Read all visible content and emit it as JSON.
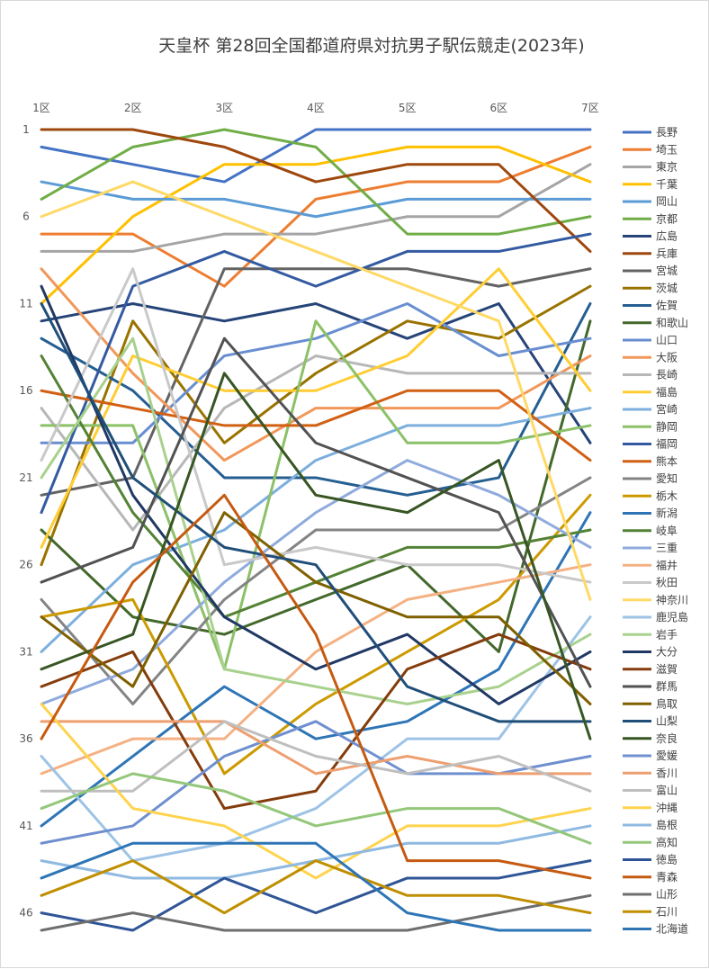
{
  "chart_data": {
    "type": "line",
    "title": "天皇杯 第28回全国都道府県対抗男子駅伝競走(2023年)",
    "categories": [
      "1区",
      "2区",
      "3区",
      "4区",
      "5区",
      "6区",
      "7区"
    ],
    "y_ticks": [
      "1",
      "6",
      "11",
      "16",
      "21",
      "26",
      "31",
      "36",
      "41",
      "46"
    ],
    "ylim": [
      1,
      47
    ],
    "y_reversed": true,
    "legend_position": "right",
    "series": [
      {
        "name": "長野",
        "color": "#4472C4",
        "values": [
          2,
          3,
          4,
          1,
          1,
          1,
          1
        ]
      },
      {
        "name": "埼玉",
        "color": "#ED7D31",
        "values": [
          7,
          7,
          10,
          5,
          4,
          4,
          2
        ]
      },
      {
        "name": "東京",
        "color": "#A5A5A5",
        "values": [
          8,
          8,
          7,
          7,
          6,
          6,
          3
        ]
      },
      {
        "name": "千葉",
        "color": "#FFC000",
        "values": [
          11,
          6,
          3,
          3,
          2,
          2,
          4
        ]
      },
      {
        "name": "岡山",
        "color": "#5B9BD5",
        "values": [
          4,
          5,
          5,
          6,
          5,
          5,
          5
        ]
      },
      {
        "name": "京都",
        "color": "#70AD47",
        "values": [
          5,
          2,
          1,
          2,
          7,
          7,
          6
        ]
      },
      {
        "name": "広島",
        "color": "#264478",
        "values": [
          12,
          11,
          12,
          11,
          13,
          11,
          19
        ]
      },
      {
        "name": "兵庫",
        "color": "#9E480E",
        "values": [
          1,
          1,
          2,
          4,
          3,
          3,
          8
        ]
      },
      {
        "name": "宮城",
        "color": "#636363",
        "values": [
          22,
          21,
          9,
          9,
          9,
          10,
          9
        ]
      },
      {
        "name": "茨城",
        "color": "#997300",
        "values": [
          26,
          12,
          19,
          15,
          12,
          13,
          10
        ]
      },
      {
        "name": "佐賀",
        "color": "#255E91",
        "values": [
          13,
          16,
          21,
          21,
          22,
          21,
          11
        ]
      },
      {
        "name": "和歌山",
        "color": "#43682B",
        "values": [
          24,
          29,
          30,
          28,
          26,
          31,
          12
        ]
      },
      {
        "name": "山口",
        "color": "#698ED0",
        "values": [
          19,
          19,
          14,
          13,
          11,
          14,
          13
        ]
      },
      {
        "name": "大阪",
        "color": "#F1975A",
        "values": [
          9,
          15,
          20,
          17,
          17,
          17,
          14
        ]
      },
      {
        "name": "長崎",
        "color": "#B7B7B7",
        "values": [
          17,
          24,
          17,
          14,
          15,
          15,
          15
        ]
      },
      {
        "name": "福島",
        "color": "#FFCD33",
        "values": [
          25,
          14,
          16,
          16,
          14,
          9,
          16
        ]
      },
      {
        "name": "宮崎",
        "color": "#7CAFDD",
        "values": [
          31,
          26,
          24,
          20,
          18,
          18,
          17
        ]
      },
      {
        "name": "静岡",
        "color": "#8CC168",
        "values": [
          18,
          18,
          32,
          12,
          19,
          19,
          18
        ]
      },
      {
        "name": "福岡",
        "color": "#335AA1",
        "values": [
          23,
          10,
          8,
          10,
          8,
          8,
          7
        ]
      },
      {
        "name": "熊本",
        "color": "#D26012",
        "values": [
          16,
          17,
          18,
          18,
          16,
          16,
          20
        ]
      },
      {
        "name": "愛知",
        "color": "#848484",
        "values": [
          28,
          34,
          28,
          24,
          24,
          24,
          21
        ]
      },
      {
        "name": "栃木",
        "color": "#CC9A00",
        "values": [
          29,
          28,
          38,
          34,
          31,
          28,
          22
        ]
      },
      {
        "name": "新潟",
        "color": "#2E75B6",
        "values": [
          41,
          37,
          33,
          36,
          35,
          32,
          23
        ]
      },
      {
        "name": "岐阜",
        "color": "#548235",
        "values": [
          14,
          23,
          29,
          27,
          25,
          25,
          24
        ]
      },
      {
        "name": "三重",
        "color": "#8FAADC",
        "values": [
          34,
          32,
          27,
          23,
          20,
          22,
          25
        ]
      },
      {
        "name": "福井",
        "color": "#F4B183",
        "values": [
          38,
          36,
          36,
          31,
          28,
          27,
          26
        ]
      },
      {
        "name": "秋田",
        "color": "#C9C9C9",
        "values": [
          20,
          9,
          26,
          25,
          26,
          26,
          27
        ]
      },
      {
        "name": "神奈川",
        "color": "#FFD966",
        "values": [
          6,
          4,
          6,
          8,
          10,
          12,
          28
        ]
      },
      {
        "name": "鹿児島",
        "color": "#9DC3E6",
        "values": [
          37,
          43,
          42,
          40,
          36,
          36,
          29
        ]
      },
      {
        "name": "岩手",
        "color": "#A9D18E",
        "values": [
          21,
          13,
          32,
          33,
          34,
          33,
          30
        ]
      },
      {
        "name": "大分",
        "color": "#203864",
        "values": [
          10,
          22,
          29,
          32,
          30,
          34,
          31
        ]
      },
      {
        "name": "滋賀",
        "color": "#843C0C",
        "values": [
          33,
          31,
          40,
          39,
          32,
          30,
          32
        ]
      },
      {
        "name": "群馬",
        "color": "#525252",
        "values": [
          27,
          25,
          13,
          19,
          21,
          23,
          33
        ]
      },
      {
        "name": "鳥取",
        "color": "#7F6000",
        "values": [
          29,
          33,
          23,
          27,
          29,
          29,
          34
        ]
      },
      {
        "name": "山梨",
        "color": "#1F4E79",
        "values": [
          11,
          21,
          25,
          26,
          33,
          35,
          35
        ]
      },
      {
        "name": "奈良",
        "color": "#375623",
        "values": [
          32,
          30,
          15,
          22,
          23,
          20,
          36
        ]
      },
      {
        "name": "愛媛",
        "color": "#6F8FCF",
        "values": [
          42,
          41,
          37,
          35,
          38,
          38,
          37
        ]
      },
      {
        "name": "香川",
        "color": "#EE9F70",
        "values": [
          35,
          35,
          35,
          38,
          37,
          38,
          38
        ]
      },
      {
        "name": "富山",
        "color": "#BFBFBF",
        "values": [
          39,
          39,
          35,
          37,
          38,
          37,
          39
        ]
      },
      {
        "name": "沖縄",
        "color": "#FFD34D",
        "values": [
          34,
          40,
          41,
          44,
          41,
          41,
          40
        ]
      },
      {
        "name": "島根",
        "color": "#8FB9E1",
        "values": [
          43,
          44,
          44,
          43,
          42,
          42,
          41
        ]
      },
      {
        "name": "高知",
        "color": "#94C77A",
        "values": [
          40,
          38,
          39,
          41,
          40,
          40,
          42
        ]
      },
      {
        "name": "徳島",
        "color": "#2F5597",
        "values": [
          46,
          47,
          44,
          46,
          44,
          44,
          43
        ]
      },
      {
        "name": "青森",
        "color": "#C55A11",
        "values": [
          36,
          27,
          22,
          30,
          43,
          43,
          44
        ]
      },
      {
        "name": "山形",
        "color": "#6E6E6E",
        "values": [
          47,
          46,
          47,
          47,
          47,
          46,
          45
        ]
      },
      {
        "name": "石川",
        "color": "#BF8F00",
        "values": [
          45,
          43,
          46,
          43,
          45,
          45,
          46
        ]
      },
      {
        "name": "北海道",
        "color": "#2E75B6",
        "values": [
          44,
          42,
          42,
          42,
          46,
          47,
          47
        ]
      }
    ]
  }
}
